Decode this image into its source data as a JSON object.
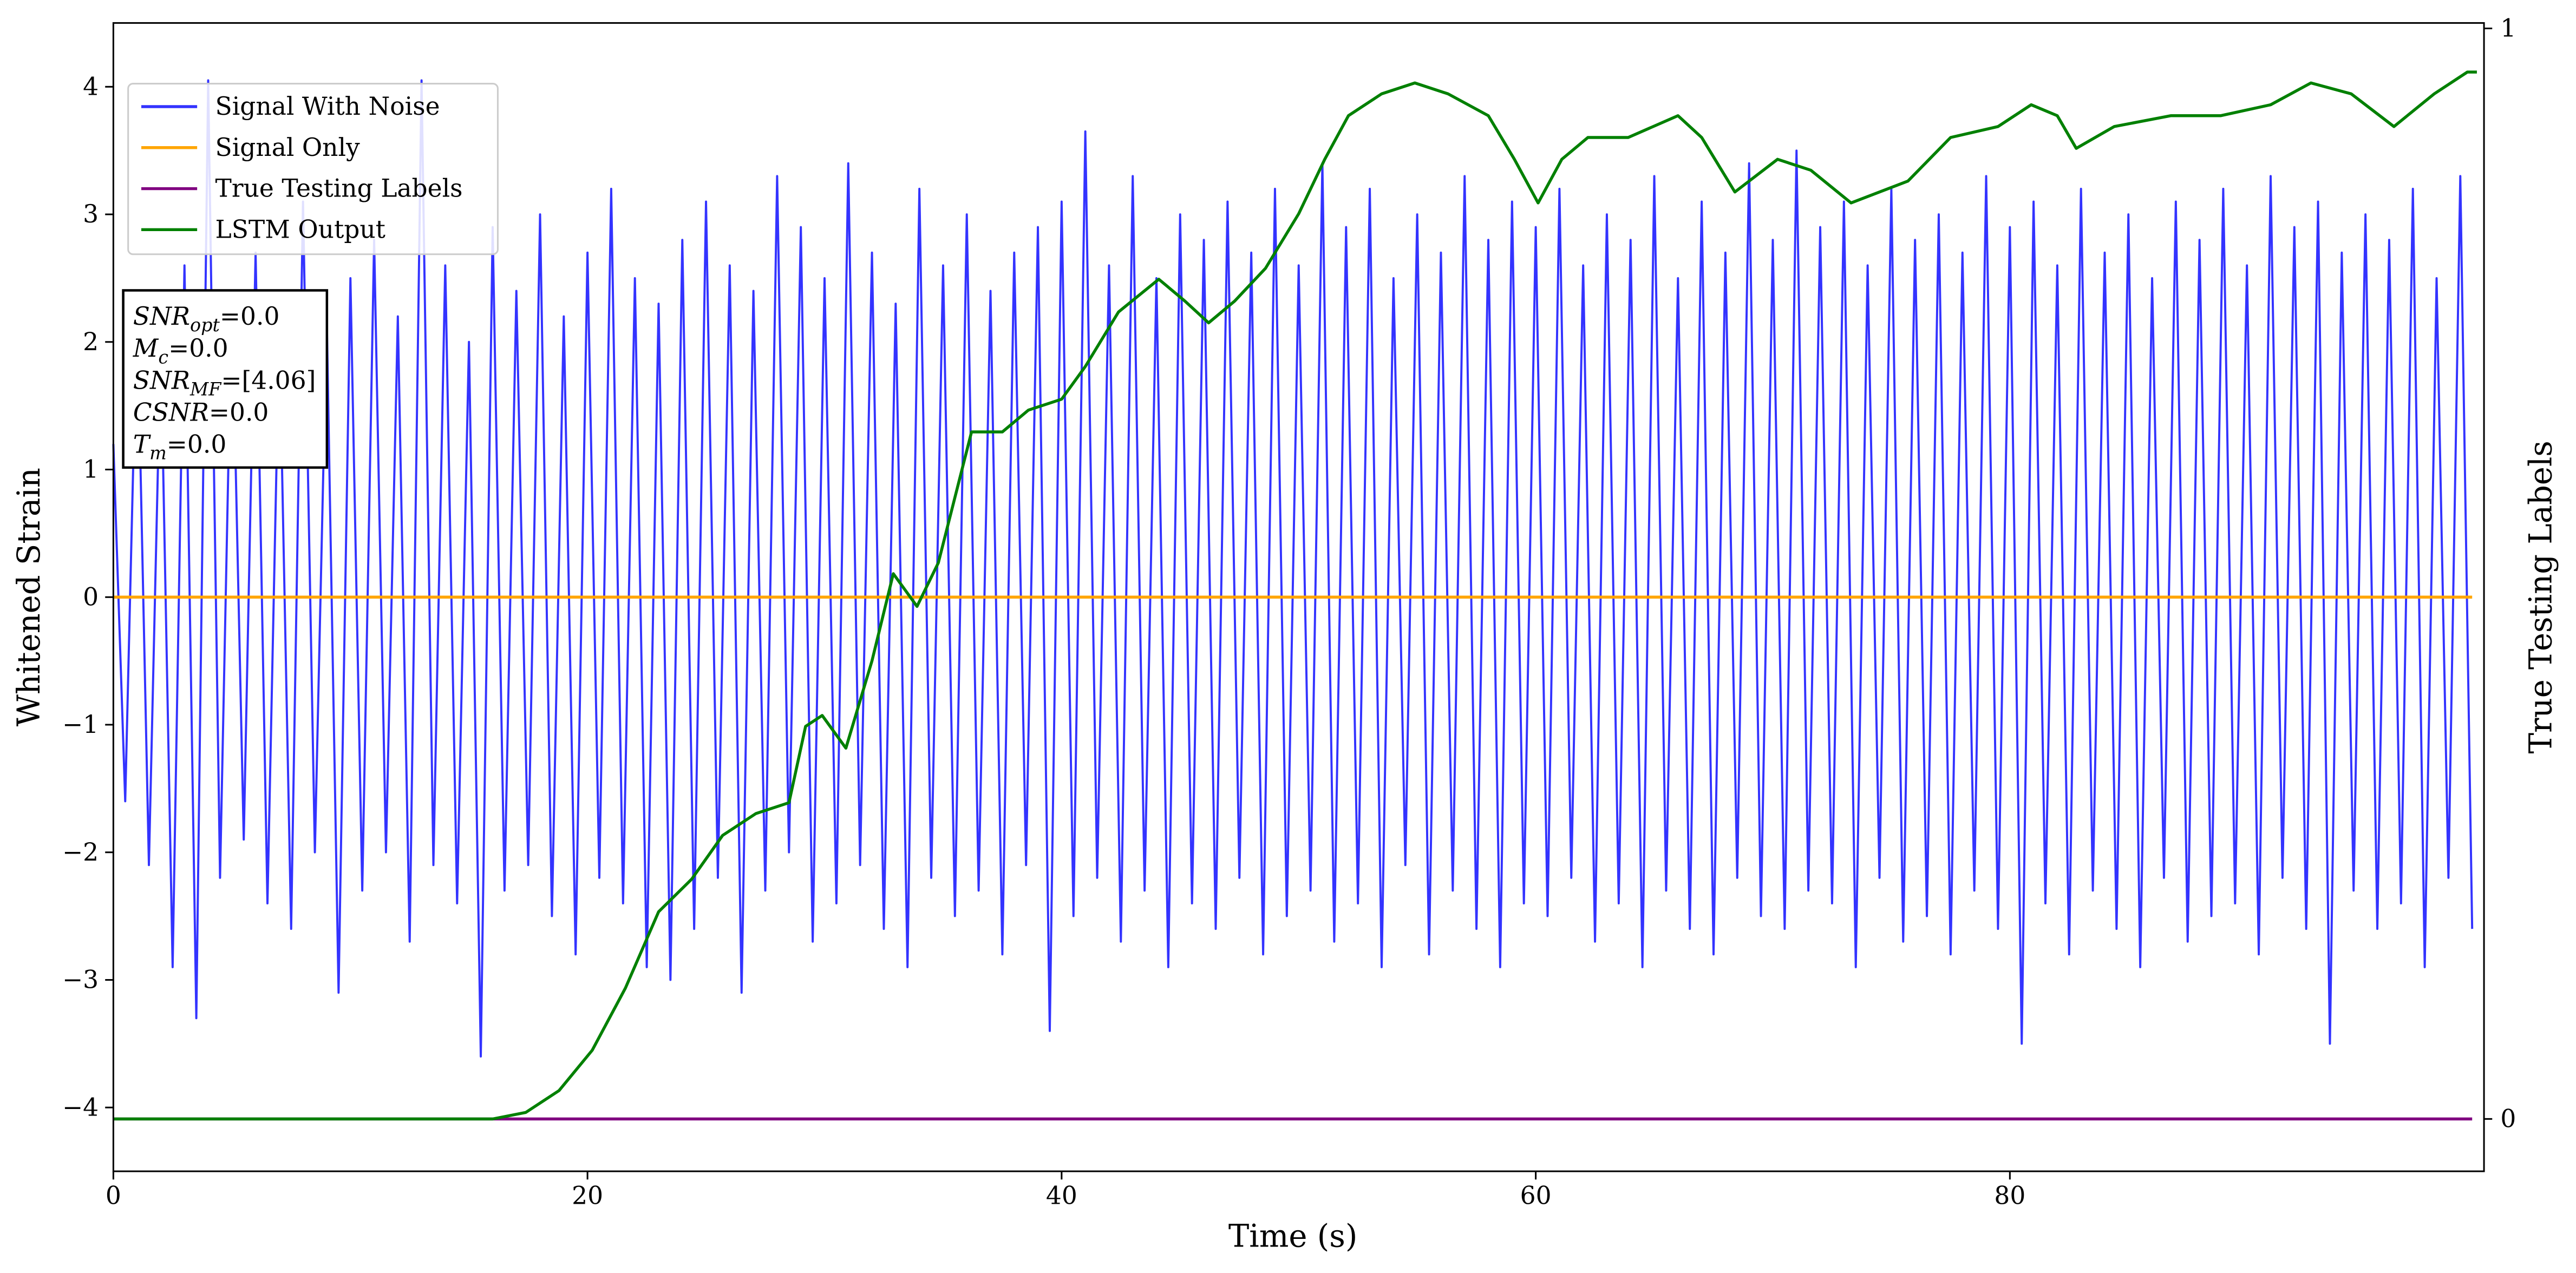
{
  "chart_data": {
    "type": "line",
    "xlabel": "Time (s)",
    "ylabel": "Whitened Strain",
    "y2label": "True Testing Labels",
    "xlim": [
      0,
      100
    ],
    "xticks": [
      0,
      20,
      40,
      60,
      80
    ],
    "ylim": [
      -4.5,
      4.5
    ],
    "yticks": [
      {
        "value": -4,
        "label": "−4"
      },
      {
        "value": -3,
        "label": "−3"
      },
      {
        "value": -2,
        "label": "−2"
      },
      {
        "value": -1,
        "label": "−1"
      },
      0,
      1,
      2,
      3,
      4
    ],
    "y2lim": [
      -0.048,
      1.005
    ],
    "y2ticks": [
      0,
      1
    ],
    "legend": "upper left",
    "series": [
      {
        "name": "Signal With Noise",
        "color": "#3333ff",
        "x": [
          0,
          0.5,
          1,
          1.5,
          2,
          2.5,
          3,
          3.5,
          4,
          4.5,
          5,
          5.5,
          6,
          6.5,
          7,
          7.5,
          8,
          8.5,
          9,
          9.5,
          10,
          10.5,
          11,
          11.5,
          12,
          12.5,
          13,
          13.5,
          14,
          14.5,
          15,
          15.5,
          16,
          16.5,
          17,
          17.5,
          18,
          18.5,
          19,
          19.5,
          20,
          20.5,
          21,
          21.5,
          22,
          22.5,
          23,
          23.5,
          24,
          24.5,
          25,
          25.5,
          26,
          26.5,
          27,
          27.5,
          28,
          28.5,
          29,
          29.5,
          30,
          30.5,
          31,
          31.5,
          32,
          32.5,
          33,
          33.5,
          34,
          34.5,
          35,
          35.5,
          36,
          36.5,
          37,
          37.5,
          38,
          38.5,
          39,
          39.5,
          40,
          40.5,
          41,
          41.5,
          42,
          42.5,
          43,
          43.5,
          44,
          44.5,
          45,
          45.5,
          46,
          46.5,
          47,
          47.5,
          48,
          48.5,
          49,
          49.5,
          50,
          50.5,
          51,
          51.5,
          52,
          52.5,
          53,
          53.5,
          54,
          54.5,
          55,
          55.5,
          56,
          56.5,
          57,
          57.5,
          58,
          58.5,
          59,
          59.5,
          60,
          60.5,
          61,
          61.5,
          62,
          62.5,
          63,
          63.5,
          64,
          64.5,
          65,
          65.5,
          66,
          66.5,
          67,
          67.5,
          68,
          68.5,
          69,
          69.5,
          70,
          70.5,
          71,
          71.5,
          72,
          72.5,
          73,
          73.5,
          74,
          74.5,
          75,
          75.5,
          76,
          76.5,
          77,
          77.5,
          78,
          78.5,
          79,
          79.5,
          80,
          80.5,
          81,
          81.5,
          82,
          82.5,
          83,
          83.5,
          84,
          84.5,
          85,
          85.5,
          86,
          86.5,
          87,
          87.5,
          88,
          88.5,
          89,
          89.5,
          90,
          90.5,
          91,
          91.5,
          92,
          92.5,
          93,
          93.5,
          94,
          94.5,
          95,
          95.5,
          96,
          96.5,
          97,
          97.5,
          98,
          98.5,
          99,
          99.5
        ],
        "values": [
          1.2,
          -1.6,
          2.3,
          -2.1,
          2.0,
          -2.9,
          2.6,
          -3.3,
          4.05,
          -2.2,
          2.4,
          -1.9,
          2.7,
          -2.4,
          2.1,
          -2.6,
          3.1,
          -2.0,
          2.2,
          -3.1,
          2.5,
          -2.3,
          2.8,
          -2.0,
          2.2,
          -2.7,
          4.05,
          -2.1,
          2.6,
          -2.4,
          2.0,
          -3.6,
          2.9,
          -2.3,
          2.4,
          -2.1,
          3.0,
          -2.5,
          2.2,
          -2.8,
          2.7,
          -2.2,
          3.2,
          -2.4,
          2.5,
          -2.9,
          2.3,
          -3.0,
          2.8,
          -2.6,
          3.1,
          -2.2,
          2.6,
          -3.1,
          2.4,
          -2.3,
          3.3,
          -2.0,
          2.9,
          -2.7,
          2.5,
          -2.4,
          3.4,
          -2.1,
          2.7,
          -2.6,
          2.3,
          -2.9,
          3.2,
          -2.2,
          2.6,
          -2.5,
          3.0,
          -2.3,
          2.4,
          -2.8,
          2.7,
          -2.1,
          2.9,
          -3.4,
          3.1,
          -2.5,
          3.65,
          -2.2,
          2.6,
          -2.7,
          3.3,
          -2.3,
          2.5,
          -2.9,
          3.0,
          -2.4,
          2.8,
          -2.6,
          3.1,
          -2.2,
          2.7,
          -2.8,
          3.2,
          -2.5,
          2.6,
          -2.3,
          3.4,
          -2.7,
          2.9,
          -2.4,
          3.2,
          -2.9,
          2.5,
          -2.1,
          3.0,
          -2.8,
          2.7,
          -2.3,
          3.3,
          -2.6,
          2.8,
          -2.9,
          3.1,
          -2.4,
          2.9,
          -2.5,
          3.2,
          -2.2,
          2.6,
          -2.7,
          3.0,
          -2.4,
          2.8,
          -2.9,
          3.3,
          -2.3,
          2.5,
          -2.6,
          3.1,
          -2.8,
          2.7,
          -2.2,
          3.4,
          -2.5,
          2.8,
          -2.6,
          3.5,
          -2.3,
          2.9,
          -2.4,
          3.1,
          -2.9,
          2.6,
          -2.2,
          3.2,
          -2.7,
          2.8,
          -2.5,
          3.0,
          -2.8,
          2.7,
          -2.3,
          3.3,
          -2.6,
          2.9,
          -3.5,
          3.1,
          -2.4,
          2.6,
          -2.8,
          3.2,
          -2.3,
          2.7,
          -2.6,
          3.0,
          -2.9,
          2.5,
          -2.2,
          3.1,
          -2.7,
          2.8,
          -2.5,
          3.2,
          -2.4,
          2.6,
          -2.8,
          3.3,
          -2.2,
          2.9,
          -2.6,
          3.1,
          -3.5,
          2.7,
          -2.3,
          3.0,
          -2.6,
          2.8,
          -2.4,
          3.2,
          -2.9,
          2.5,
          -2.2,
          3.3,
          -2.6
        ]
      },
      {
        "name": "Signal Only",
        "color": "#ffa500",
        "x": [
          0,
          99.5
        ],
        "values": [
          0,
          0
        ]
      },
      {
        "name": "True Testing Labels",
        "color": "#800080",
        "axis": "y2",
        "x": [
          0,
          99.5
        ],
        "values": [
          0,
          0
        ]
      },
      {
        "name": "LSTM Output",
        "color": "#008000",
        "axis": "y2",
        "x": [
          0,
          16,
          17.4,
          18.8,
          20.2,
          21.6,
          23.0,
          24.4,
          25.7,
          27.1,
          28.5,
          29.2,
          29.9,
          30.9,
          32.0,
          32.9,
          33.9,
          34.8,
          36.2,
          37.5,
          38.6,
          40.0,
          41.0,
          42.4,
          44.1,
          45.2,
          46.2,
          47.3,
          48.6,
          50.0,
          51.1,
          52.1,
          53.5,
          54.9,
          56.3,
          58.0,
          59.1,
          60.1,
          61.1,
          62.2,
          63.9,
          66.0,
          67.0,
          68.4,
          70.2,
          71.6,
          73.3,
          75.7,
          77.5,
          79.5,
          80.9,
          82.0,
          82.8,
          84.4,
          86.8,
          88.9,
          91.0,
          92.7,
          94.4,
          96.2,
          97.9,
          99.3,
          99.7
        ],
        "values": [
          0,
          0,
          0.006,
          0.026,
          0.063,
          0.12,
          0.19,
          0.22,
          0.26,
          0.28,
          0.29,
          0.36,
          0.37,
          0.34,
          0.42,
          0.5,
          0.47,
          0.51,
          0.63,
          0.63,
          0.65,
          0.66,
          0.69,
          0.74,
          0.77,
          0.75,
          0.73,
          0.75,
          0.78,
          0.83,
          0.88,
          0.92,
          0.94,
          0.95,
          0.94,
          0.92,
          0.88,
          0.84,
          0.88,
          0.9,
          0.9,
          0.92,
          0.9,
          0.85,
          0.88,
          0.87,
          0.84,
          0.86,
          0.9,
          0.91,
          0.93,
          0.92,
          0.89,
          0.91,
          0.92,
          0.92,
          0.93,
          0.95,
          0.94,
          0.91,
          0.94,
          0.96,
          0.96
        ]
      }
    ],
    "annotations": [
      {
        "label": "SNR",
        "subscript": "opt",
        "text": "=0.0"
      },
      {
        "label": "M",
        "subscript": "c",
        "text": "=0.0"
      },
      {
        "label": "SNR",
        "subscript": "MF",
        "text": "=[4.06]"
      },
      {
        "label": "CSNR",
        "text": "=0.0"
      },
      {
        "label": "T",
        "subscript": "m",
        "text": "=0.0"
      }
    ]
  }
}
